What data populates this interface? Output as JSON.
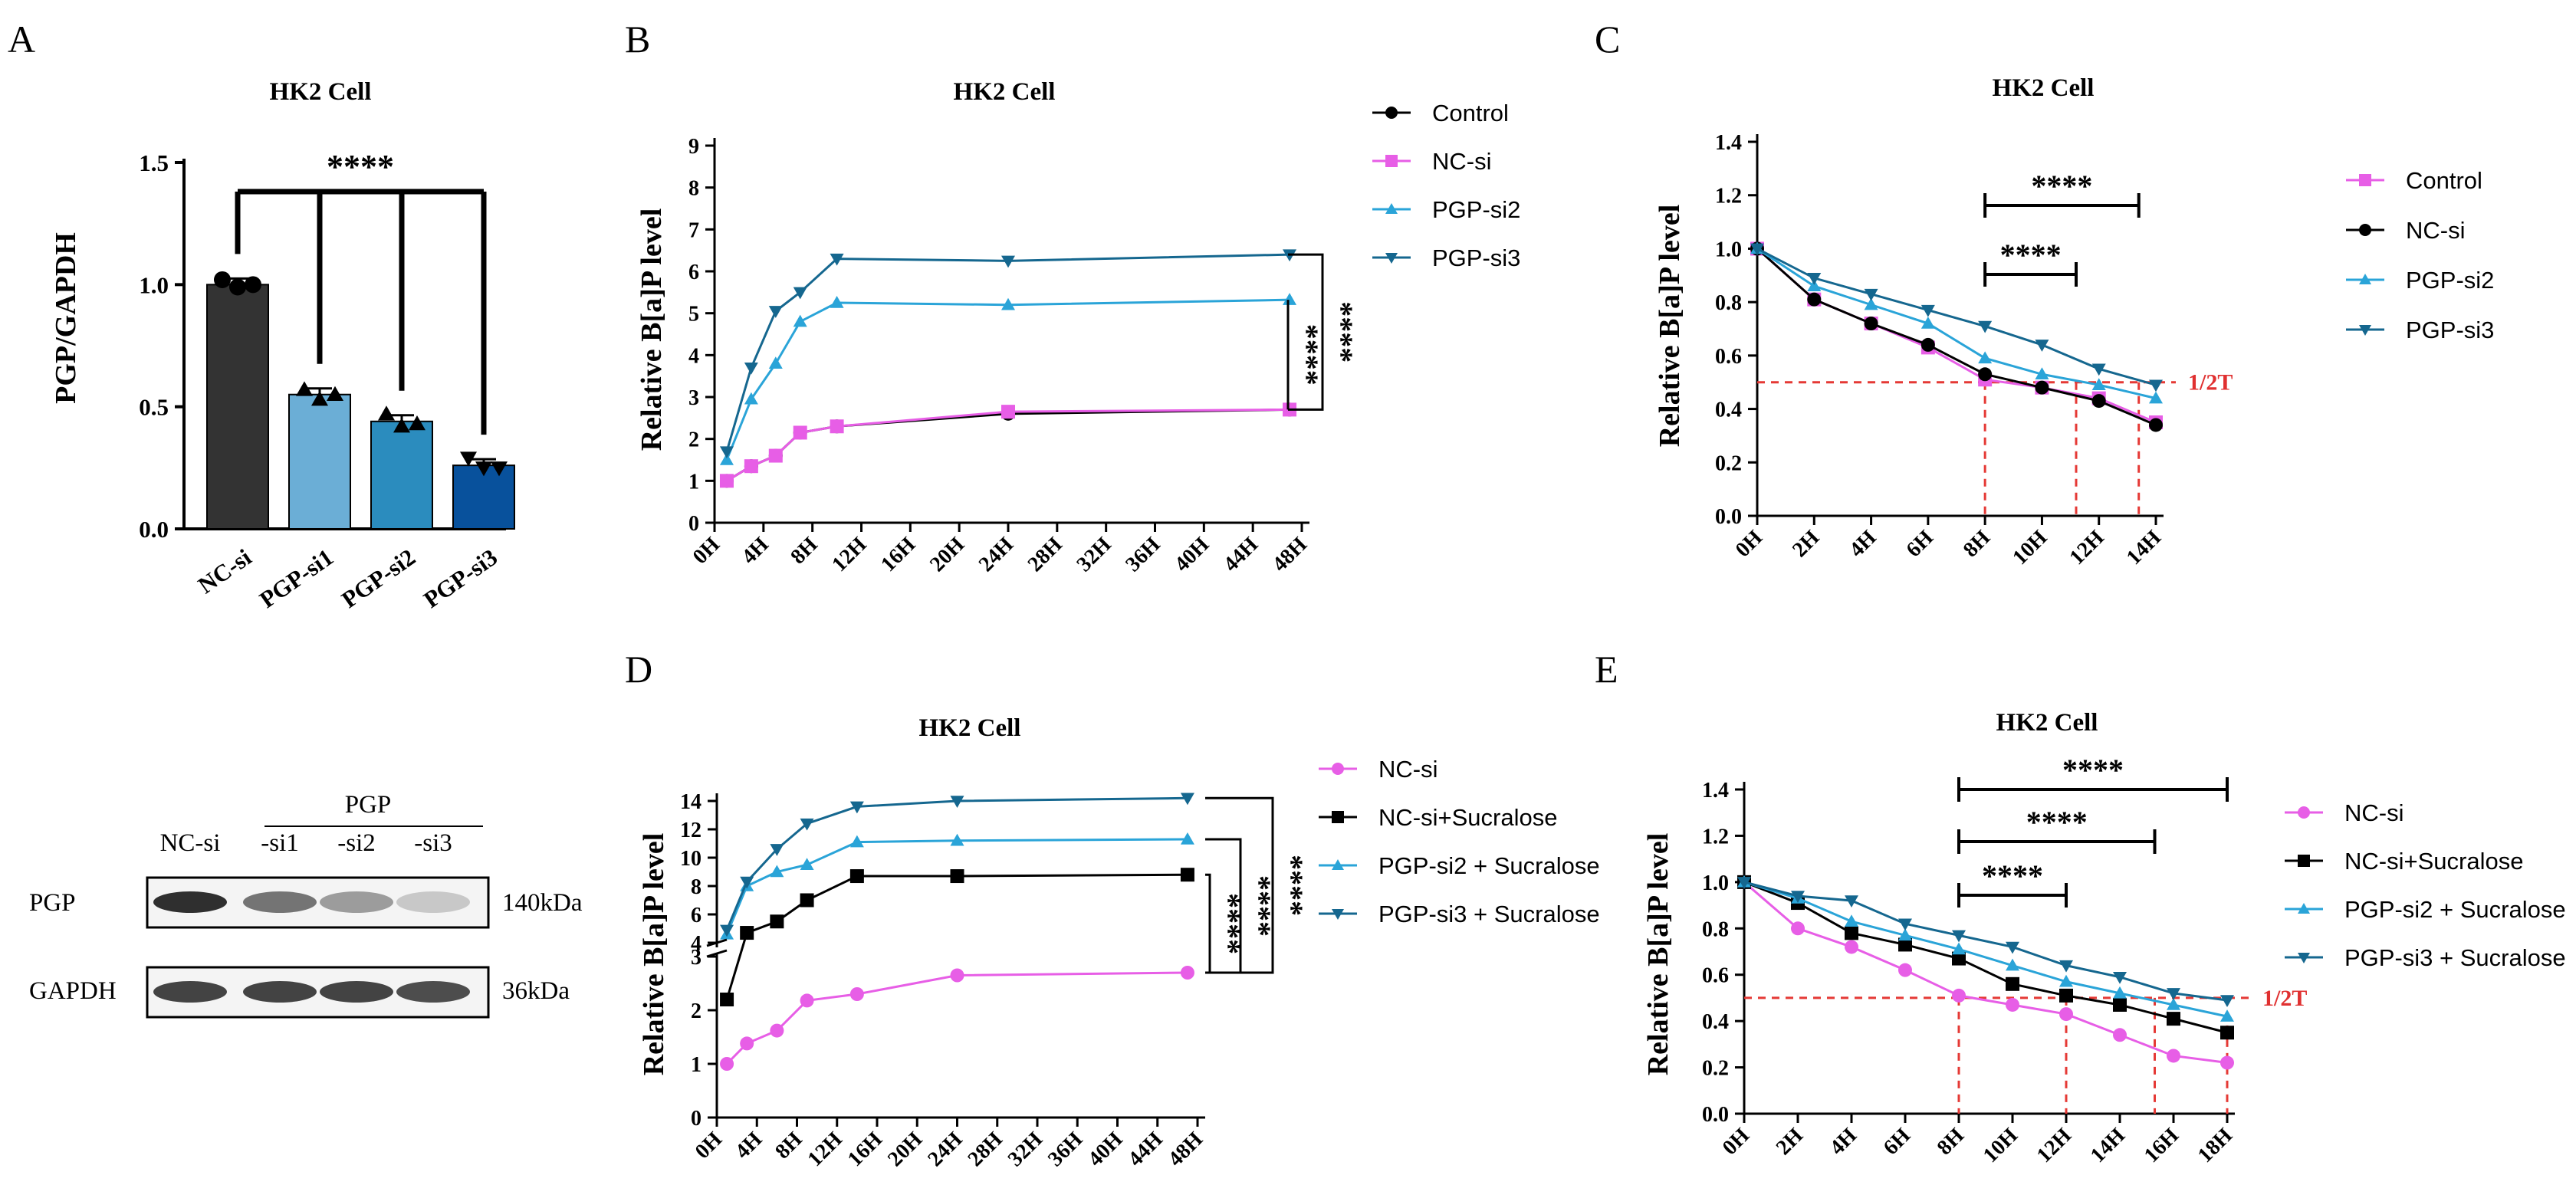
{
  "figure": {
    "panel_labels": [
      "A",
      "B",
      "C",
      "D",
      "E"
    ],
    "half_life_label": "1/2T",
    "stars": "****"
  },
  "western_blot": {
    "group_label": "PGP",
    "lane_labels": [
      "NC-si",
      "-si1",
      "-si2",
      "-si3"
    ],
    "rows": [
      {
        "protein": "PGP",
        "size": "140kDa",
        "intensity": [
          0.95,
          0.6,
          0.4,
          0.18
        ]
      },
      {
        "protein": "GAPDH",
        "size": "36kDa",
        "intensity": [
          0.85,
          0.85,
          0.85,
          0.8
        ]
      }
    ]
  },
  "chart_data": [
    {
      "panel": "A",
      "type": "bar",
      "title": "HK2 Cell",
      "ylabel": "PGP/GAPDH",
      "xlabel": "",
      "ylim": [
        0,
        1.5
      ],
      "yticks": [
        "0.0",
        "0.5",
        "1.0",
        "1.5"
      ],
      "categories": [
        "NC-si",
        "PGP-si1",
        "PGP-si2",
        "PGP-si3"
      ],
      "values": [
        1.0,
        0.55,
        0.44,
        0.26
      ],
      "points": [
        [
          1.02,
          0.99,
          1.0
        ],
        [
          0.57,
          0.53,
          0.55
        ],
        [
          0.47,
          0.42,
          0.43
        ],
        [
          0.29,
          0.25,
          0.25
        ]
      ],
      "colors": [
        "#333333",
        "#6baed6",
        "#2b8cbe",
        "#08519c"
      ],
      "markers": [
        "circle",
        "triangle",
        "triangle-up",
        "triangle-down"
      ],
      "significance": "****"
    },
    {
      "panel": "B",
      "type": "line",
      "title": "HK2 Cell",
      "ylabel": "Relative B[a]P level",
      "ylim": [
        0,
        9
      ],
      "yticks": [
        "0",
        "1",
        "2",
        "3",
        "4",
        "5",
        "6",
        "7",
        "8",
        "9"
      ],
      "xticks": [
        "0H",
        "4H",
        "8H",
        "12H",
        "16H",
        "20H",
        "24H",
        "28H",
        "32H",
        "36H",
        "40H",
        "44H",
        "48H"
      ],
      "x": [
        1,
        3,
        5,
        7,
        10,
        24,
        47
      ],
      "series": [
        {
          "name": "Control",
          "color": "#000000",
          "marker": "circle",
          "values": [
            1.0,
            1.35,
            1.6,
            2.15,
            2.3,
            2.6,
            2.7
          ]
        },
        {
          "name": "NC-si",
          "color": "#e75ee6",
          "marker": "square",
          "values": [
            1.0,
            1.35,
            1.6,
            2.15,
            2.3,
            2.65,
            2.7
          ]
        },
        {
          "name": "PGP-si2",
          "color": "#2aa4d8",
          "marker": "triangle-up",
          "values": [
            1.5,
            2.95,
            3.8,
            4.8,
            5.25,
            5.2,
            5.32
          ]
        },
        {
          "name": "PGP-si3",
          "color": "#15678f",
          "marker": "triangle-down",
          "values": [
            1.7,
            3.7,
            5.05,
            5.5,
            6.3,
            6.25,
            6.4
          ]
        }
      ],
      "significance": [
        "****",
        "****"
      ]
    },
    {
      "panel": "C",
      "type": "line",
      "title": "HK2 Cell",
      "ylabel": "Relative B[a]P level",
      "ylim": [
        0,
        1.4
      ],
      "yticks": [
        "0.0",
        "0.2",
        "0.4",
        "0.6",
        "0.8",
        "1.0",
        "1.2",
        "1.4"
      ],
      "xticks": [
        "0H",
        "2H",
        "4H",
        "6H",
        "8H",
        "10H",
        "12H",
        "14H"
      ],
      "x": [
        0,
        2,
        4,
        6,
        8,
        10,
        12,
        14
      ],
      "series": [
        {
          "name": "Control",
          "color": "#e75ee6",
          "marker": "square",
          "values": [
            1.0,
            0.81,
            0.72,
            0.63,
            0.51,
            0.48,
            0.44,
            0.35
          ]
        },
        {
          "name": "NC-si",
          "color": "#000000",
          "marker": "circle",
          "values": [
            1.0,
            0.81,
            0.72,
            0.64,
            0.53,
            0.48,
            0.43,
            0.34
          ]
        },
        {
          "name": "PGP-si2",
          "color": "#2aa4d8",
          "marker": "triangle-up",
          "values": [
            1.0,
            0.86,
            0.79,
            0.72,
            0.59,
            0.53,
            0.49,
            0.44
          ]
        },
        {
          "name": "PGP-si3",
          "color": "#15678f",
          "marker": "triangle-down",
          "values": [
            1.0,
            0.89,
            0.83,
            0.77,
            0.71,
            0.64,
            0.55,
            0.49
          ]
        }
      ],
      "half_life_x": [
        8,
        11.2,
        13.4
      ],
      "significance": [
        "****",
        "****"
      ]
    },
    {
      "panel": "D",
      "type": "line",
      "title": "HK2 Cell",
      "ylabel": "Relative B[a]P level",
      "yticks_lower": [
        "0",
        "1",
        "2",
        "3"
      ],
      "yticks_upper": [
        "4",
        "6",
        "8",
        "10",
        "12",
        "14"
      ],
      "xticks": [
        "0H",
        "4H",
        "8H",
        "12H",
        "16H",
        "20H",
        "24H",
        "28H",
        "32H",
        "36H",
        "40H",
        "44H",
        "48H"
      ],
      "x": [
        1,
        3,
        6,
        9,
        14,
        24,
        47
      ],
      "series": [
        {
          "name": "NC-si",
          "color": "#e75ee6",
          "marker": "circle",
          "values": [
            1.0,
            1.38,
            1.62,
            2.18,
            2.3,
            2.65,
            2.7
          ]
        },
        {
          "name": "NC-si+Sucralose",
          "color": "#000000",
          "marker": "square",
          "values": [
            2.2,
            4.7,
            5.5,
            7.0,
            8.7,
            8.7,
            8.8
          ]
        },
        {
          "name": "PGP-si2 + Sucralose",
          "color": "#2aa4d8",
          "marker": "triangle-up",
          "values": [
            4.6,
            8.0,
            9.0,
            9.5,
            11.1,
            11.2,
            11.3
          ]
        },
        {
          "name": "PGP-si3 + Sucralose",
          "color": "#15678f",
          "marker": "triangle-down",
          "values": [
            4.9,
            8.3,
            10.6,
            12.4,
            13.6,
            14.0,
            14.2
          ]
        }
      ],
      "significance": [
        "****",
        "****",
        "****"
      ]
    },
    {
      "panel": "E",
      "type": "line",
      "title": "HK2 Cell",
      "ylabel": "Relative B[a]P level",
      "ylim": [
        0,
        1.4
      ],
      "yticks": [
        "0.0",
        "0.2",
        "0.4",
        "0.6",
        "0.8",
        "1.0",
        "1.2",
        "1.4"
      ],
      "xticks": [
        "0H",
        "2H",
        "4H",
        "6H",
        "8H",
        "10H",
        "12H",
        "14H",
        "16H",
        "18H"
      ],
      "x": [
        0,
        2,
        4,
        6,
        8,
        10,
        12,
        14,
        16,
        18
      ],
      "series": [
        {
          "name": "NC-si",
          "color": "#e75ee6",
          "marker": "circle",
          "values": [
            1.0,
            0.8,
            0.72,
            0.62,
            0.51,
            0.47,
            0.43,
            0.34,
            0.25,
            0.22
          ]
        },
        {
          "name": "NC-si+Sucralose",
          "color": "#000000",
          "marker": "square",
          "values": [
            1.0,
            0.91,
            0.78,
            0.73,
            0.67,
            0.56,
            0.51,
            0.47,
            0.41,
            0.35
          ]
        },
        {
          "name": "PGP-si2 + Sucralose",
          "color": "#2aa4d8",
          "marker": "triangle-up",
          "values": [
            1.0,
            0.93,
            0.83,
            0.77,
            0.71,
            0.64,
            0.57,
            0.52,
            0.47,
            0.42
          ]
        },
        {
          "name": "PGP-si3 + Sucralose",
          "color": "#15678f",
          "marker": "triangle-down",
          "values": [
            1.0,
            0.94,
            0.92,
            0.82,
            0.77,
            0.72,
            0.64,
            0.59,
            0.52,
            0.49
          ]
        }
      ],
      "half_life_x": [
        8,
        12,
        15.3,
        18
      ],
      "significance": [
        "****",
        "****",
        "****"
      ]
    }
  ]
}
